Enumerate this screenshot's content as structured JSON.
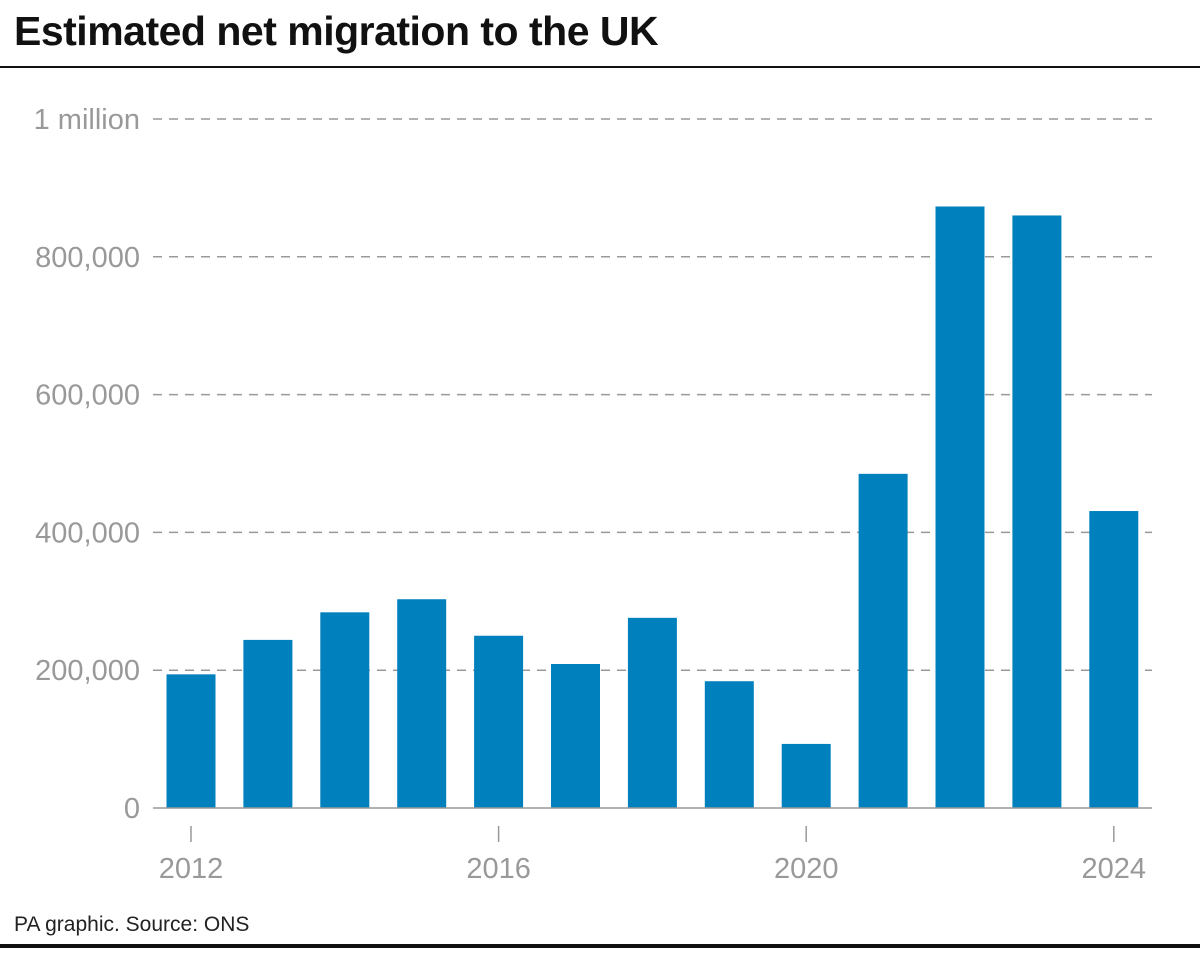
{
  "title": "Estimated net migration to the UK",
  "source": "PA graphic. Source: ONS",
  "chart_data": {
    "type": "bar",
    "title": "Estimated net migration to the UK",
    "xlabel": "",
    "ylabel": "",
    "categories": [
      "2012",
      "2013",
      "2014",
      "2015",
      "2016",
      "2017",
      "2018",
      "2019",
      "2020",
      "2021",
      "2022",
      "2023",
      "2024"
    ],
    "values": [
      194000,
      244000,
      284000,
      303000,
      250000,
      209000,
      276000,
      184000,
      93000,
      485000,
      873000,
      860000,
      431000
    ],
    "ylim": [
      0,
      1000000
    ],
    "yticks": [
      0,
      200000,
      400000,
      600000,
      800000,
      1000000
    ],
    "ytick_labels": [
      "0",
      "200,000",
      "400,000",
      "600,000",
      "800,000",
      "1 million"
    ],
    "xtick_labels": [
      "2012",
      "2016",
      "2020",
      "2024"
    ],
    "grid": "horizontal dashed",
    "legend": "none",
    "bar_color": "#0080bd"
  }
}
